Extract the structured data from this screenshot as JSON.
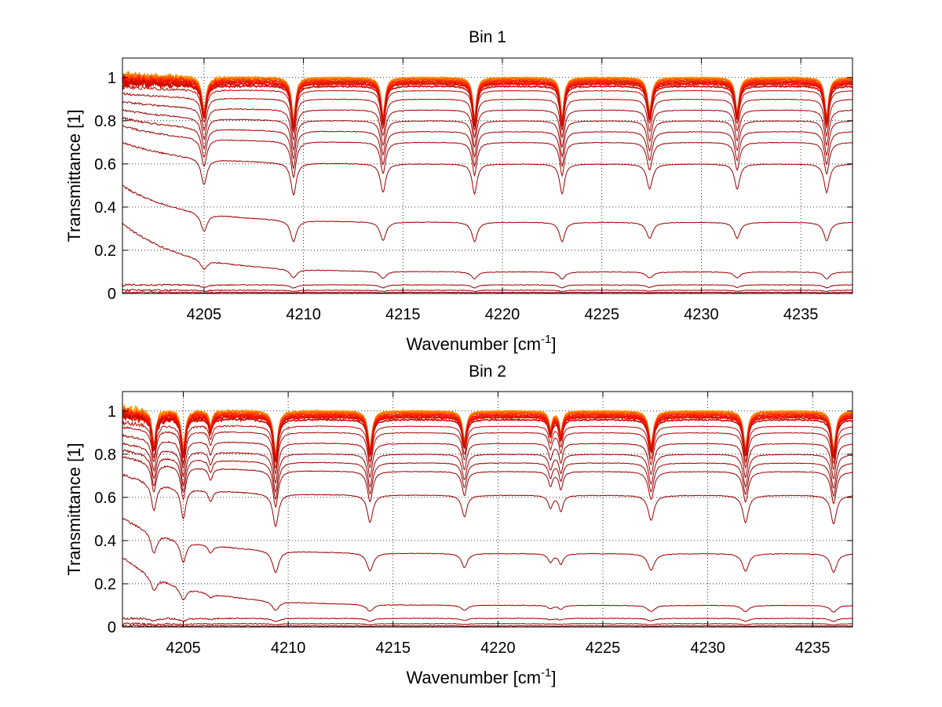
{
  "chart_data": [
    {
      "type": "line",
      "title": "Bin 1",
      "xlabel": "Wavenumber [cm",
      "xlabel_sup": "-1",
      "xlabel_end": "]",
      "ylabel": "Transmittance [1]",
      "xlim": [
        4200.9,
        4237.6
      ],
      "ylim": [
        0,
        1.09
      ],
      "xticks": [
        4205,
        4210,
        4215,
        4220,
        4225,
        4230,
        4235
      ],
      "yticks": [
        0,
        0.2,
        0.4,
        0.6,
        0.8,
        1
      ],
      "grid": true,
      "absorption_lines": [
        {
          "x": 4205.0,
          "width": 0.14,
          "rel_depth": 0.35
        },
        {
          "x": 4209.5,
          "width": 0.13,
          "rel_depth": 0.45
        },
        {
          "x": 4214.0,
          "width": 0.13,
          "rel_depth": 0.4
        },
        {
          "x": 4218.6,
          "width": 0.12,
          "rel_depth": 0.42
        },
        {
          "x": 4223.0,
          "width": 0.12,
          "rel_depth": 0.42
        },
        {
          "x": 4227.4,
          "width": 0.14,
          "rel_depth": 0.35
        },
        {
          "x": 4231.8,
          "width": 0.13,
          "rel_depth": 0.35
        },
        {
          "x": 4236.3,
          "width": 0.13,
          "rel_depth": 0.4
        }
      ],
      "series_levels": [
        1.0,
        1.0,
        0.995,
        0.99,
        0.985,
        0.98,
        0.975,
        0.97,
        0.96,
        0.94,
        0.9,
        0.85,
        0.8,
        0.75,
        0.7,
        0.6,
        0.33,
        0.1,
        0.04,
        0.015,
        0.005
      ],
      "series_colors": [
        "#ffa500",
        "#ff8c00",
        "#ff6a00",
        "#ff4500",
        "#ff2a00",
        "#ff1a00",
        "#ee1100",
        "#dd0e00",
        "#cc0b00",
        "#bb0800",
        "#aa0500",
        "#990300",
        "#990000",
        "#990000",
        "#990000",
        "#990000",
        "#990000",
        "#990000",
        "#990000",
        "#990000",
        "#990000"
      ]
    },
    {
      "type": "line",
      "title": "Bin 2",
      "xlabel": "Wavenumber [cm",
      "xlabel_sup": "-1",
      "xlabel_end": "]",
      "ylabel": "Transmittance [1]",
      "xlim": [
        4202.1,
        4236.9
      ],
      "ylim": [
        0,
        1.09
      ],
      "xticks": [
        4205,
        4210,
        4215,
        4220,
        4225,
        4230,
        4235
      ],
      "yticks": [
        0,
        0.2,
        0.4,
        0.6,
        0.8,
        1
      ],
      "grid": true,
      "absorption_lines": [
        {
          "x": 4203.6,
          "width": 0.12,
          "rel_depth": 0.35
        },
        {
          "x": 4205.0,
          "width": 0.12,
          "rel_depth": 0.4
        },
        {
          "x": 4206.3,
          "width": 0.1,
          "rel_depth": 0.15
        },
        {
          "x": 4209.4,
          "width": 0.13,
          "rel_depth": 0.45
        },
        {
          "x": 4213.9,
          "width": 0.13,
          "rel_depth": 0.38
        },
        {
          "x": 4218.4,
          "width": 0.12,
          "rel_depth": 0.3
        },
        {
          "x": 4222.5,
          "width": 0.1,
          "rel_depth": 0.18
        },
        {
          "x": 4223.0,
          "width": 0.1,
          "rel_depth": 0.22
        },
        {
          "x": 4227.3,
          "width": 0.14,
          "rel_depth": 0.35
        },
        {
          "x": 4231.8,
          "width": 0.13,
          "rel_depth": 0.38
        },
        {
          "x": 4236.0,
          "width": 0.13,
          "rel_depth": 0.4
        }
      ],
      "series_levels": [
        1.0,
        1.0,
        0.995,
        0.99,
        0.985,
        0.98,
        0.975,
        0.97,
        0.96,
        0.93,
        0.9,
        0.85,
        0.8,
        0.76,
        0.72,
        0.61,
        0.34,
        0.1,
        0.04,
        0.015,
        0.005
      ],
      "series_colors": [
        "#ffa500",
        "#ff8c00",
        "#ff6a00",
        "#ff4500",
        "#ff2a00",
        "#ff1a00",
        "#ee1100",
        "#dd0e00",
        "#cc0b00",
        "#bb0800",
        "#aa0500",
        "#990300",
        "#990000",
        "#990000",
        "#990000",
        "#990000",
        "#990000",
        "#990000",
        "#990000",
        "#990000",
        "#990000"
      ]
    }
  ]
}
